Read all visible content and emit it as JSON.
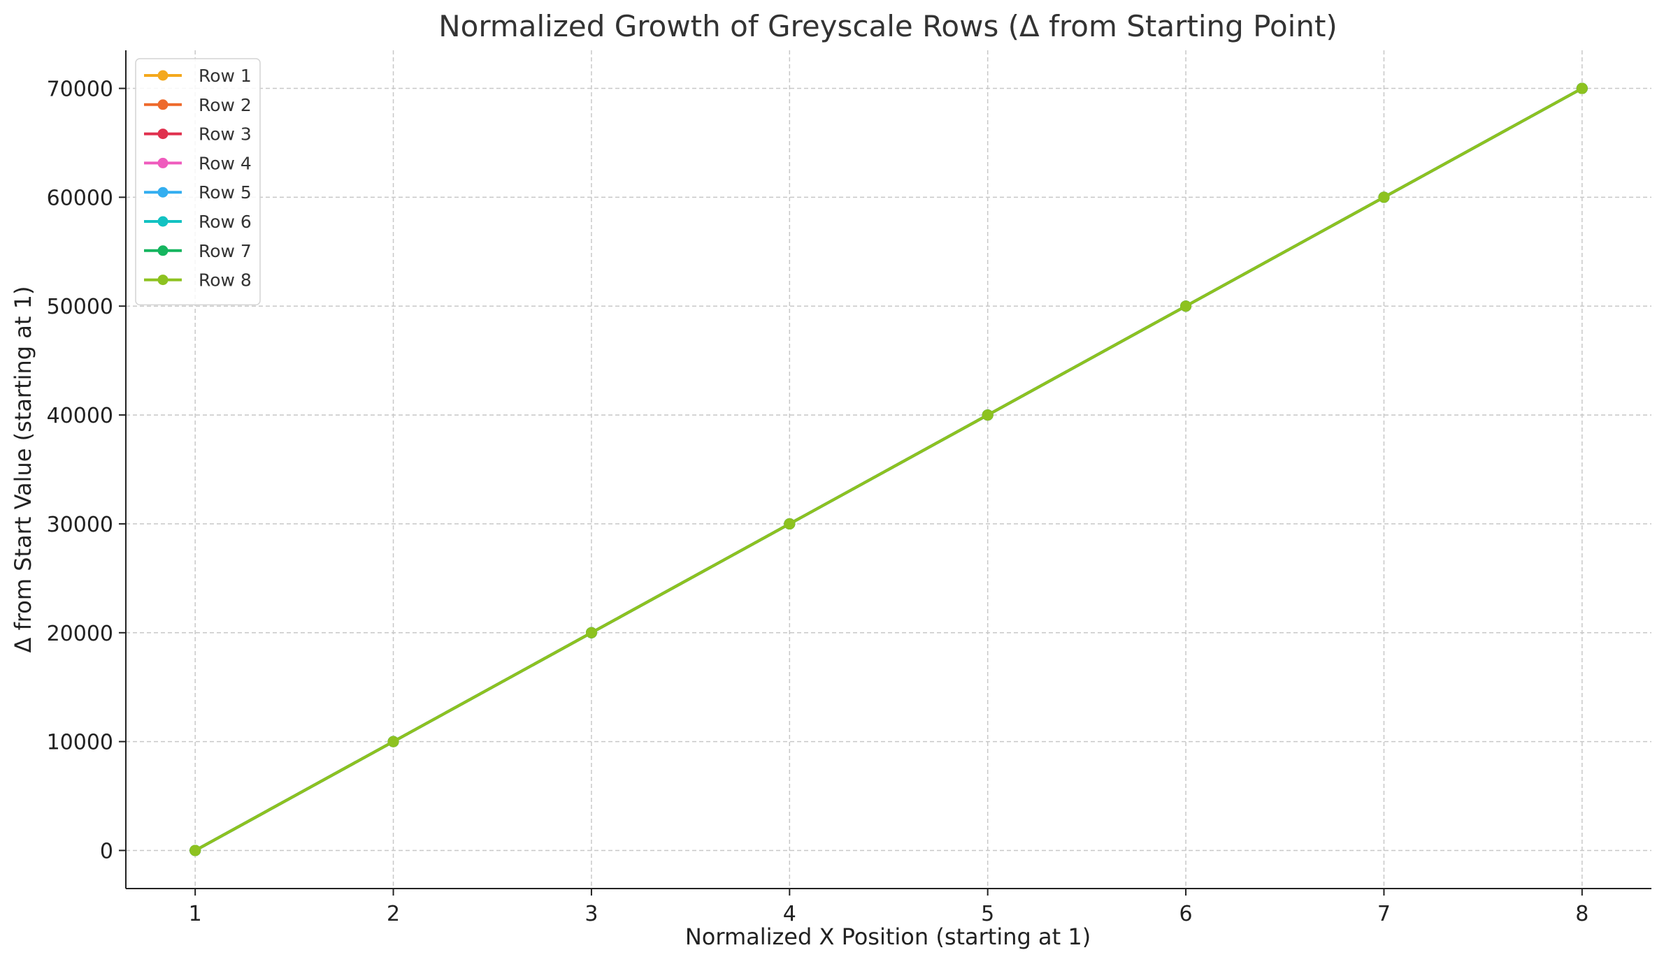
{
  "chart_data": {
    "type": "line",
    "title": "Normalized Growth of Greyscale Rows (Δ from Starting Point)",
    "xlabel": "Normalized X Position (starting at 1)",
    "ylabel": "Δ from Start Value (starting at 1)",
    "x": [
      1,
      2,
      3,
      4,
      5,
      6,
      7,
      8
    ],
    "xlim": [
      0.65,
      8.35
    ],
    "ylim": [
      -3500,
      73500
    ],
    "xticks": [
      1,
      2,
      3,
      4,
      5,
      6,
      7,
      8
    ],
    "yticks": [
      0,
      10000,
      20000,
      30000,
      40000,
      50000,
      60000,
      70000
    ],
    "xtick_labels": [
      "1",
      "2",
      "3",
      "4",
      "5",
      "6",
      "7",
      "8"
    ],
    "ytick_labels": [
      "0",
      "10000",
      "20000",
      "30000",
      "40000",
      "50000",
      "60000",
      "70000"
    ],
    "grid": true,
    "legend_position": "top-left",
    "series": [
      {
        "name": "Row 1",
        "color": "#f4a81d",
        "values": [
          0,
          10000,
          20000,
          30000,
          40000,
          50000,
          60000,
          70000
        ]
      },
      {
        "name": "Row 2",
        "color": "#ee6a2c",
        "values": [
          0,
          10000,
          20000,
          30000,
          40000,
          50000,
          60000,
          70000
        ]
      },
      {
        "name": "Row 3",
        "color": "#e0304e",
        "values": [
          0,
          10000,
          20000,
          30000,
          40000,
          50000,
          60000,
          70000
        ]
      },
      {
        "name": "Row 4",
        "color": "#ef5bbd",
        "values": [
          0,
          10000,
          20000,
          30000,
          40000,
          50000,
          60000,
          70000
        ]
      },
      {
        "name": "Row 5",
        "color": "#33aef0",
        "values": [
          0,
          10000,
          20000,
          30000,
          40000,
          50000,
          60000,
          70000
        ]
      },
      {
        "name": "Row 6",
        "color": "#12c2c2",
        "values": [
          0,
          10000,
          20000,
          30000,
          40000,
          50000,
          60000,
          70000
        ]
      },
      {
        "name": "Row 7",
        "color": "#15b55f",
        "values": [
          0,
          10000,
          20000,
          30000,
          40000,
          50000,
          60000,
          70000
        ]
      },
      {
        "name": "Row 8",
        "color": "#8dc220",
        "values": [
          0,
          10000,
          20000,
          30000,
          40000,
          50000,
          60000,
          70000
        ]
      }
    ]
  }
}
